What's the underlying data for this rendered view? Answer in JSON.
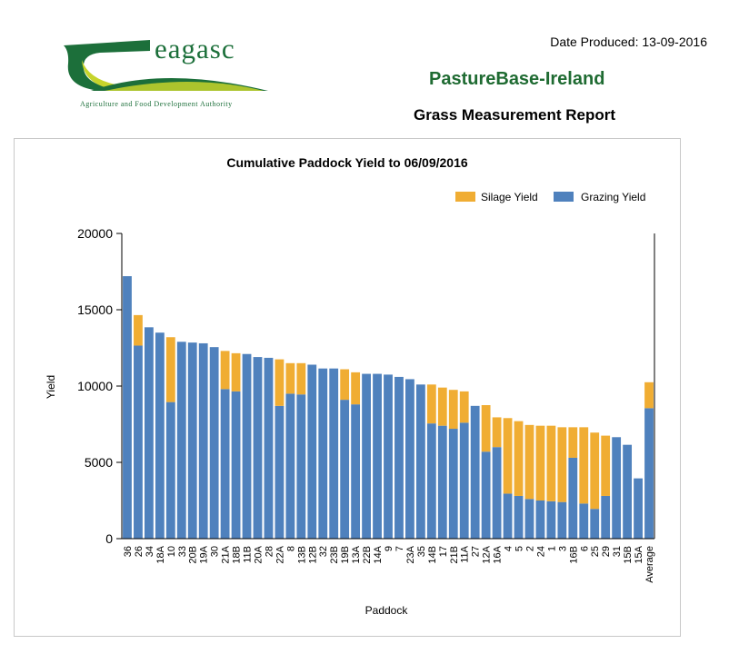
{
  "header": {
    "logo_text": "eagasc",
    "logo_subtitle": "Agriculture and Food Development Authority",
    "date_produced": "Date Produced: 13-09-2016",
    "org_name": "PastureBase-Ireland",
    "report_title": "Grass Measurement Report"
  },
  "colors": {
    "silage": "#f0ad33",
    "grazing": "#4f81bd",
    "brand_green": "#1f6b32"
  },
  "chart_data": {
    "type": "bar",
    "stacked": true,
    "title": "Cumulative Paddock Yield to 06/09/2016",
    "xlabel": "Paddock",
    "ylabel": "Yield",
    "ylim": [
      0,
      20000
    ],
    "yticks": [
      0,
      5000,
      10000,
      15000,
      20000
    ],
    "grid": false,
    "legend_position": "top-right",
    "categories": [
      "36",
      "26",
      "34",
      "18A",
      "10",
      "33",
      "20B",
      "19A",
      "30",
      "21A",
      "18B",
      "11B",
      "20A",
      "28",
      "22A",
      "8",
      "13B",
      "12B",
      "32",
      "23B",
      "19B",
      "13A",
      "22B",
      "14A",
      "9",
      "7",
      "23A",
      "35",
      "14B",
      "17",
      "21B",
      "11A",
      "27",
      "12A",
      "16A",
      "4",
      "5",
      "2",
      "24",
      "1",
      "3",
      "16B",
      "6",
      "25",
      "29",
      "31",
      "15B",
      "15A",
      "Average"
    ],
    "series": [
      {
        "name": "Grazing Yield",
        "values": [
          17200,
          12650,
          13850,
          13500,
          8950,
          12900,
          12850,
          12800,
          12550,
          9800,
          9650,
          12100,
          11900,
          11850,
          8700,
          9500,
          9450,
          11400,
          11150,
          11150,
          9100,
          8800,
          10800,
          10800,
          10750,
          10600,
          10450,
          10100,
          7550,
          7400,
          7200,
          7600,
          8700,
          5700,
          6000,
          2950,
          2800,
          2600,
          2500,
          2450,
          2400,
          5300,
          2300,
          1950,
          2800,
          6650,
          6150,
          3950,
          8550
        ]
      },
      {
        "name": "Silage Yield",
        "values": [
          0,
          2000,
          0,
          0,
          4250,
          0,
          0,
          0,
          0,
          2500,
          2500,
          0,
          0,
          0,
          3050,
          2000,
          2050,
          0,
          0,
          0,
          2000,
          2100,
          0,
          0,
          0,
          0,
          0,
          0,
          2550,
          2500,
          2550,
          2050,
          0,
          3050,
          1950,
          4950,
          4900,
          4850,
          4900,
          4950,
          4900,
          2000,
          5000,
          5000,
          3950,
          0,
          0,
          0,
          1700
        ]
      }
    ]
  }
}
